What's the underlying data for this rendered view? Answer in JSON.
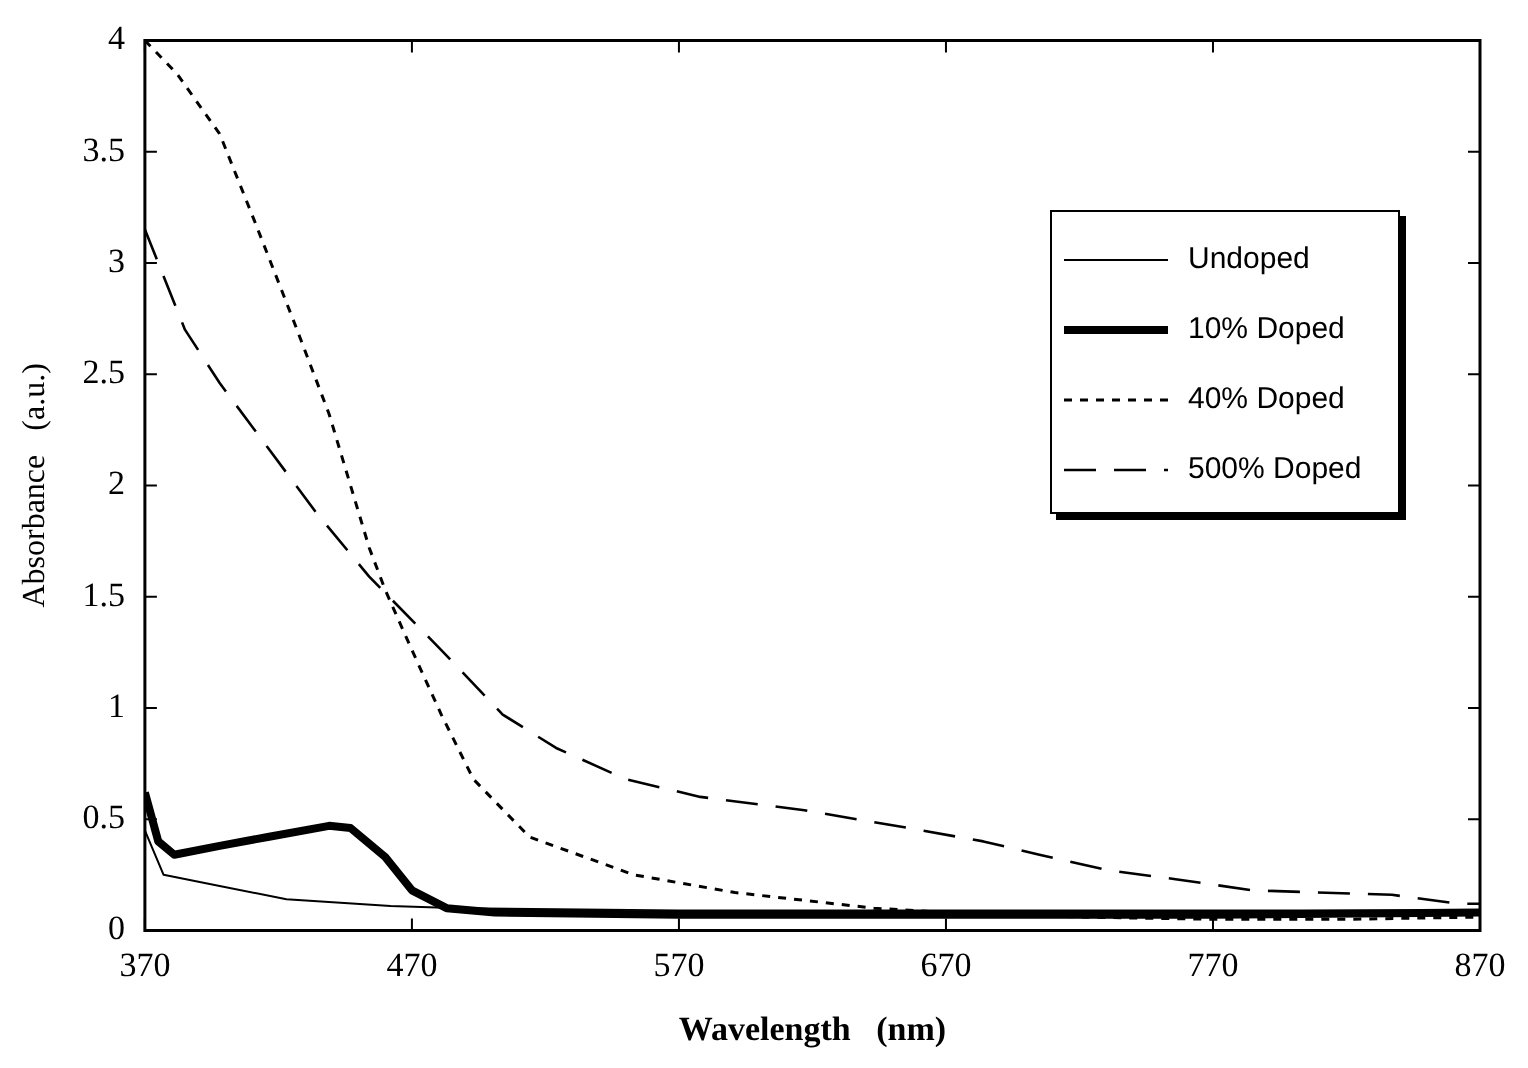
{
  "chart_data": {
    "type": "line",
    "xlabel": "Wavelength   (nm)",
    "ylabel": "Absorbance   (a.u.)",
    "xlim": [
      370,
      870
    ],
    "xticks": [
      370,
      470,
      570,
      670,
      770,
      870
    ],
    "ylim": [
      0,
      4
    ],
    "yticks": [
      0,
      0.5,
      1,
      1.5,
      2,
      2.5,
      3,
      3.5,
      4
    ],
    "grid": false,
    "legend": "top right",
    "marker": "none",
    "series": [
      {
        "name": "Undoped",
        "color": "#000000",
        "line_style": "solid",
        "x": [
          370,
          371,
          377,
          398,
          423,
          462,
          488,
          570,
          670,
          770,
          870
        ],
        "values": [
          0.45,
          0.42,
          0.25,
          0.2,
          0.14,
          0.11,
          0.1,
          0.09,
          0.09,
          0.09,
          0.09
        ]
      },
      {
        "name": "10% Doped",
        "color": "#000000",
        "line_style": "solid",
        "x": [
          370,
          375,
          381,
          398,
          416,
          439,
          447,
          460,
          470,
          483,
          501,
          570,
          670,
          770,
          870
        ],
        "values": [
          0.62,
          0.4,
          0.34,
          0.38,
          0.42,
          0.47,
          0.46,
          0.33,
          0.18,
          0.1,
          0.08,
          0.07,
          0.07,
          0.07,
          0.08
        ]
      },
      {
        "name": "40% Doped",
        "color": "#000000",
        "line_style": "dotted",
        "x": [
          370,
          382,
          398,
          411,
          426,
          439,
          454,
          460,
          470,
          481,
          493,
          514,
          553,
          591,
          643,
          670,
          720,
          770,
          820,
          870
        ],
        "values": [
          4.0,
          3.85,
          3.58,
          3.19,
          2.73,
          2.32,
          1.72,
          1.53,
          1.26,
          0.97,
          0.68,
          0.42,
          0.25,
          0.17,
          0.1,
          0.08,
          0.06,
          0.05,
          0.05,
          0.06
        ]
      },
      {
        "name": "500% Doped",
        "color": "#000000",
        "line_style": "dashed",
        "x": [
          370,
          385,
          398,
          416,
          434,
          454,
          481,
          504,
          524,
          550,
          578,
          617,
          656,
          684,
          705,
          731,
          756,
          785,
          837,
          862,
          870
        ],
        "values": [
          3.15,
          2.7,
          2.46,
          2.17,
          1.88,
          1.59,
          1.26,
          0.97,
          0.82,
          0.68,
          0.6,
          0.54,
          0.46,
          0.4,
          0.34,
          0.27,
          0.23,
          0.18,
          0.16,
          0.12,
          0.12
        ]
      }
    ]
  }
}
